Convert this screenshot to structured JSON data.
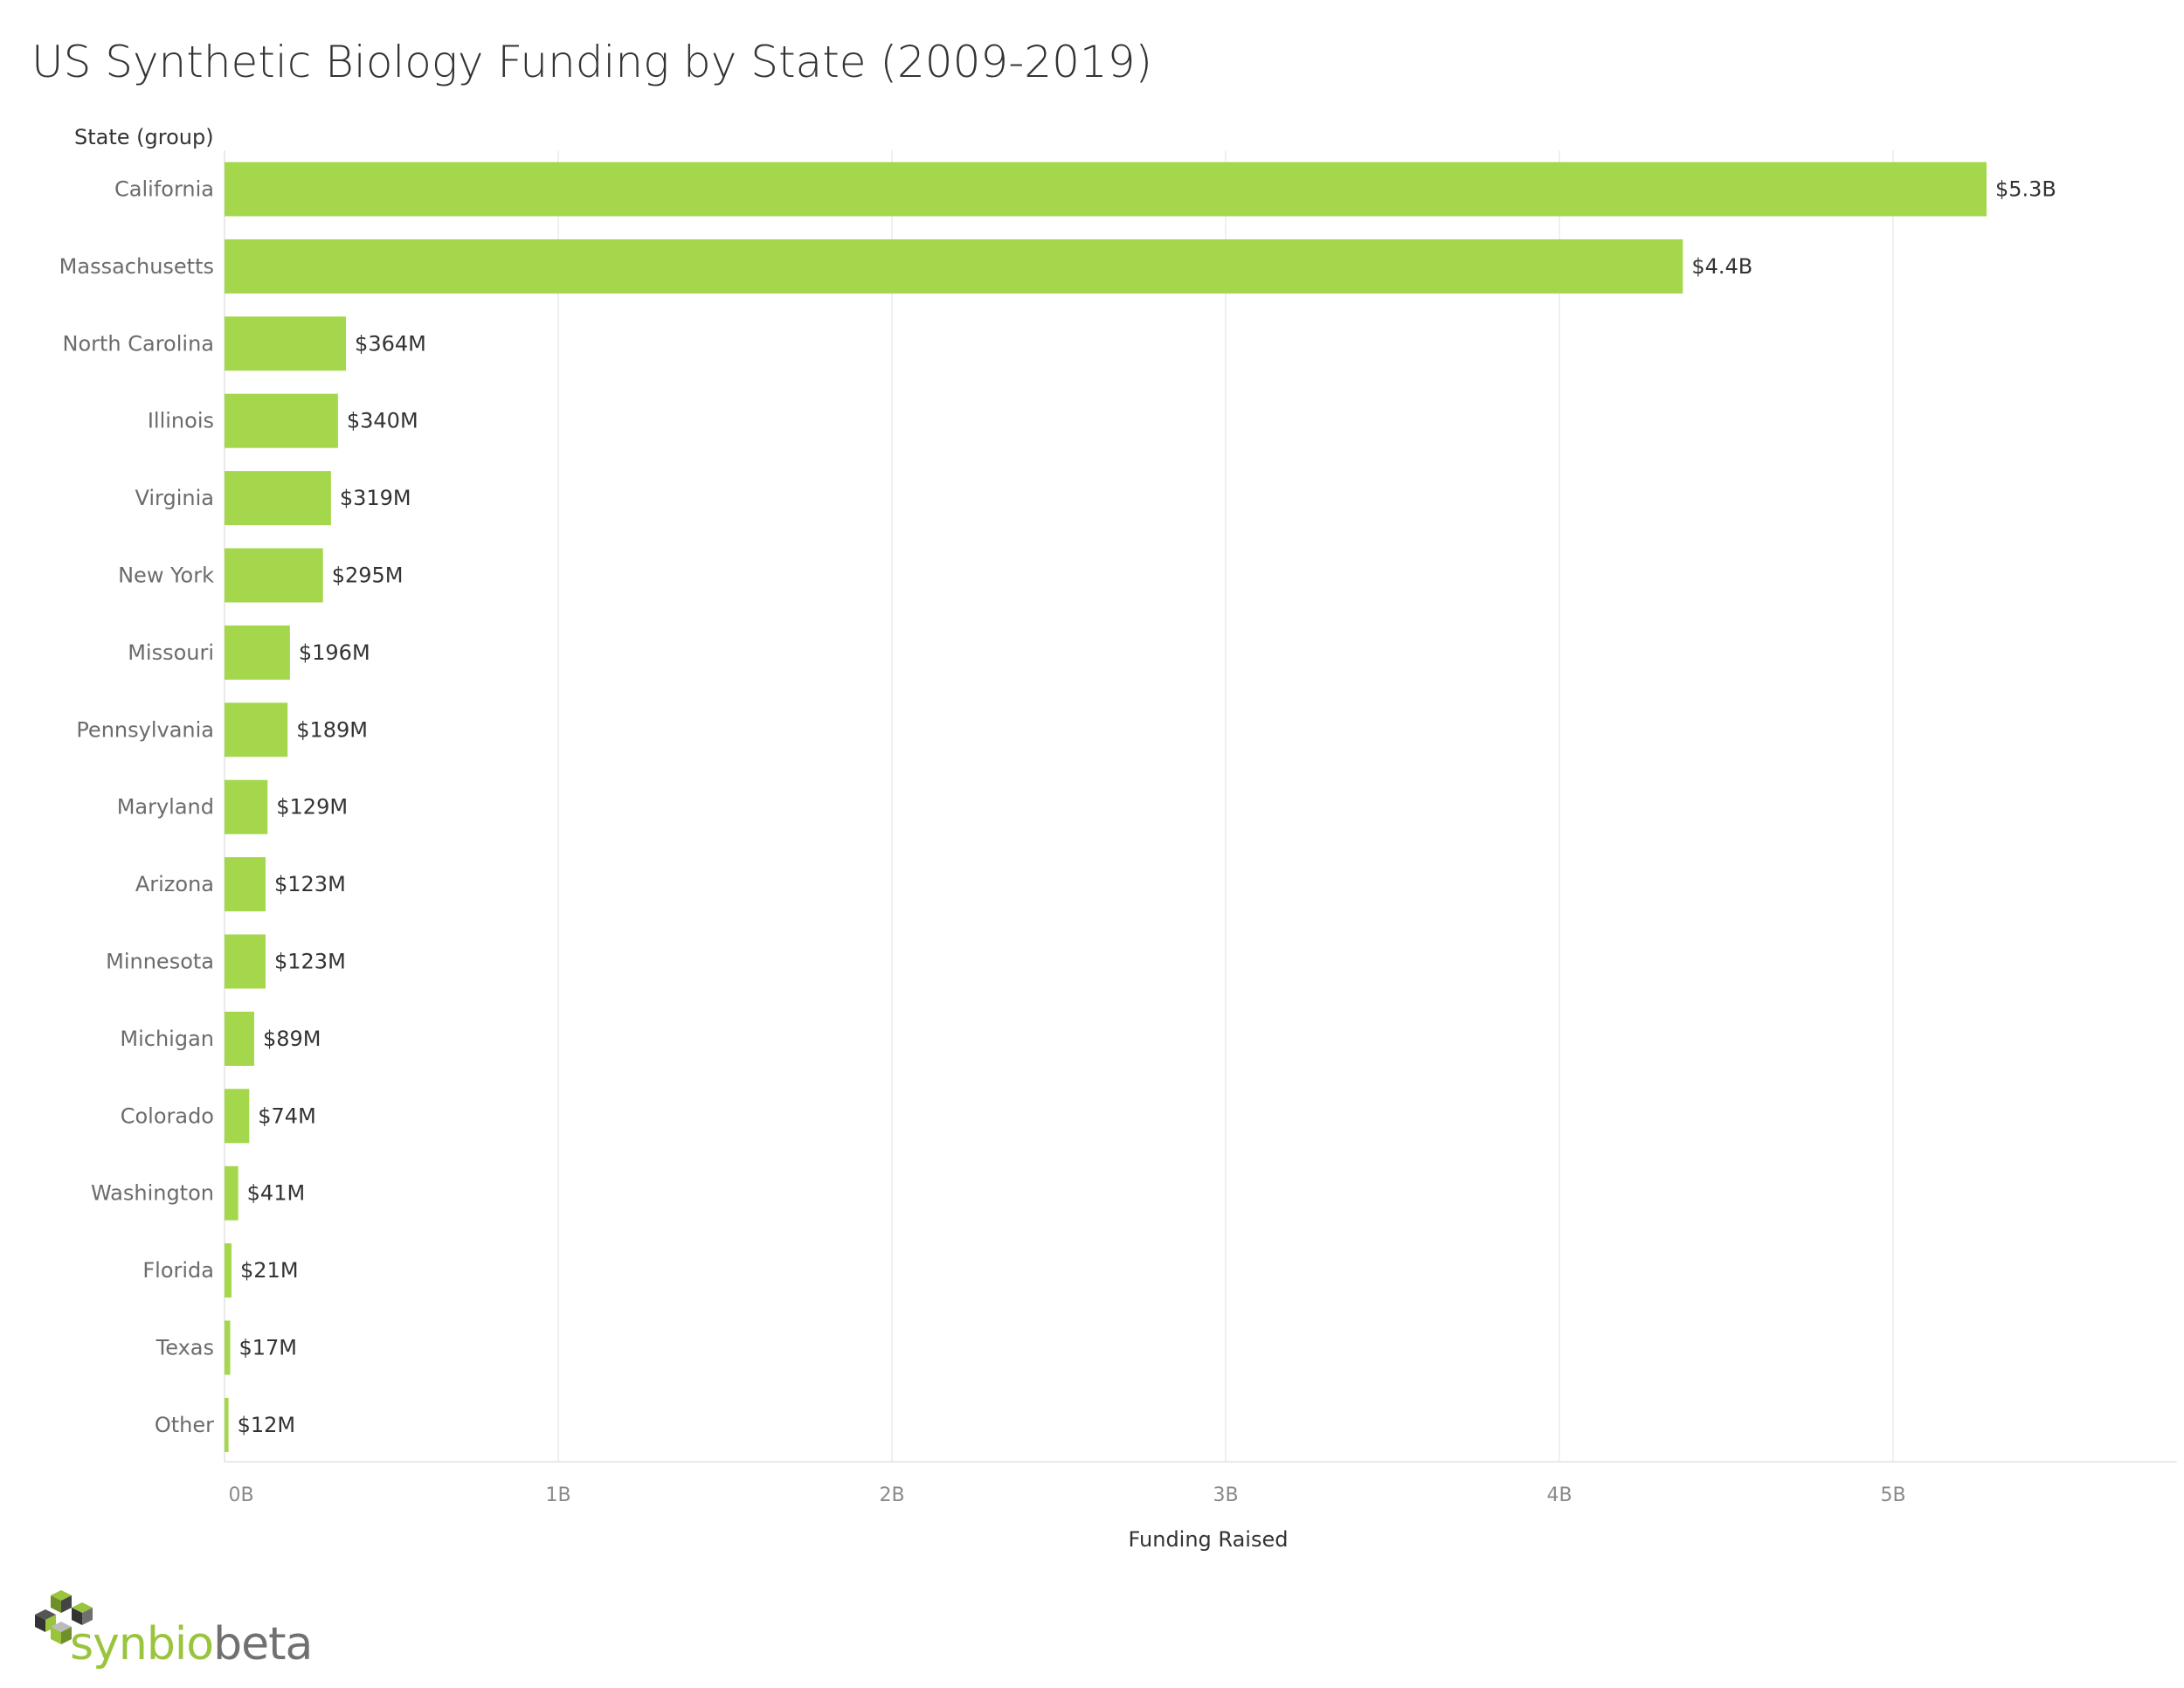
{
  "chart_data": {
    "type": "bar",
    "orientation": "horizontal",
    "title": "US Synthetic Biology Funding by State (2009-2019)",
    "row_header": "State (group)",
    "xlabel": "Funding Raised",
    "categories": [
      "California",
      "Massachusetts",
      "North Carolina",
      "Illinois",
      "Virginia",
      "New York",
      "Missouri",
      "Pennsylvania",
      "Maryland",
      "Arizona",
      "Minnesota",
      "Michigan",
      "Colorado",
      "Washington",
      "Florida",
      "Texas",
      "Other"
    ],
    "values": [
      5.28,
      4.37,
      0.364,
      0.34,
      0.319,
      0.295,
      0.196,
      0.189,
      0.129,
      0.123,
      0.123,
      0.089,
      0.074,
      0.041,
      0.021,
      0.017,
      0.012
    ],
    "value_labels": [
      "$5.3B",
      "$4.4B",
      "$364M",
      "$340M",
      "$319M",
      "$295M",
      "$196M",
      "$189M",
      "$129M",
      "$123M",
      "$123M",
      "$89M",
      "$74M",
      "$41M",
      "$21M",
      "$17M",
      "$12M"
    ],
    "value_unit": "billions USD",
    "xlim": [
      0,
      5.85
    ],
    "xticks": [
      0,
      1,
      2,
      3,
      4,
      5
    ],
    "xtick_labels": [
      "0B",
      "1B",
      "2B",
      "3B",
      "4B",
      "5B"
    ],
    "grid": "vertical",
    "bar_color": "#a4d74c"
  },
  "logo": {
    "text_part1": "synbio",
    "text_part2": "beta",
    "icon": "cube-logo-icon"
  }
}
